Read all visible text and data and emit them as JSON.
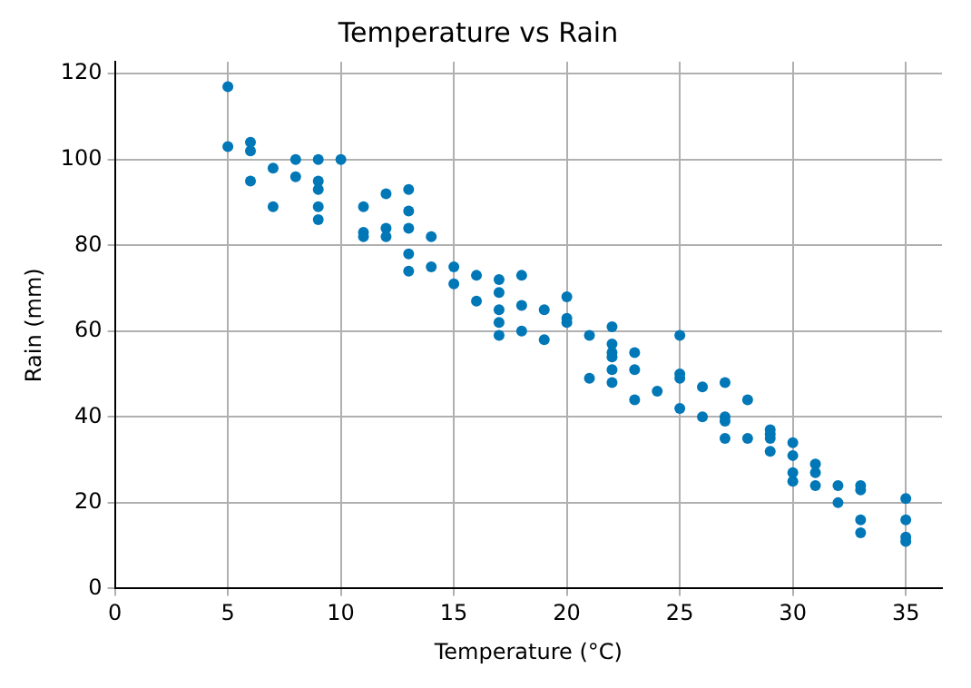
{
  "chart_data": {
    "type": "scatter",
    "title": "Temperature vs Rain",
    "xlabel": "Temperature (°C)",
    "ylabel": "Rain (mm)",
    "x": [
      5,
      5,
      6,
      6,
      6,
      7,
      7,
      8,
      8,
      9,
      9,
      9,
      9,
      9,
      10,
      11,
      11,
      11,
      12,
      12,
      12,
      13,
      13,
      13,
      13,
      13,
      14,
      14,
      15,
      15,
      16,
      16,
      17,
      17,
      17,
      17,
      17,
      18,
      18,
      18,
      19,
      19,
      20,
      20,
      20,
      21,
      21,
      22,
      22,
      22,
      22,
      22,
      22,
      23,
      23,
      23,
      24,
      25,
      25,
      25,
      25,
      26,
      26,
      27,
      27,
      27,
      27,
      28,
      28,
      29,
      29,
      29,
      29,
      30,
      30,
      30,
      30,
      31,
      31,
      31,
      32,
      32,
      33,
      33,
      33,
      33,
      35,
      35,
      35,
      35
    ],
    "series": [
      {
        "color": "#0077b6",
        "values": [
          117,
          103,
          104,
          102,
          95,
          98,
          89,
          100,
          96,
          100,
          95,
          93,
          89,
          86,
          100,
          89,
          83,
          82,
          92,
          84,
          82,
          93,
          88,
          84,
          78,
          74,
          82,
          75,
          75,
          71,
          73,
          67,
          72,
          69,
          65,
          62,
          59,
          73,
          66,
          60,
          65,
          58,
          68,
          63,
          62,
          59,
          49,
          61,
          57,
          55,
          54,
          51,
          48,
          55,
          51,
          44,
          46,
          59,
          50,
          49,
          42,
          47,
          40,
          48,
          40,
          39,
          35,
          44,
          35,
          37,
          36,
          35,
          32,
          34,
          31,
          27,
          25,
          29,
          27,
          24,
          24,
          20,
          24,
          23,
          16,
          13,
          21,
          16,
          12,
          11
        ]
      }
    ],
    "xlim": [
      0,
      36.6
    ],
    "xticks": [
      0,
      5,
      10,
      15,
      20,
      25,
      30,
      35
    ],
    "ylim": [
      0,
      122.8
    ],
    "yticks": [
      0,
      20,
      40,
      60,
      80,
      100,
      120
    ],
    "grid": true,
    "marker": "circle",
    "legend": false
  }
}
